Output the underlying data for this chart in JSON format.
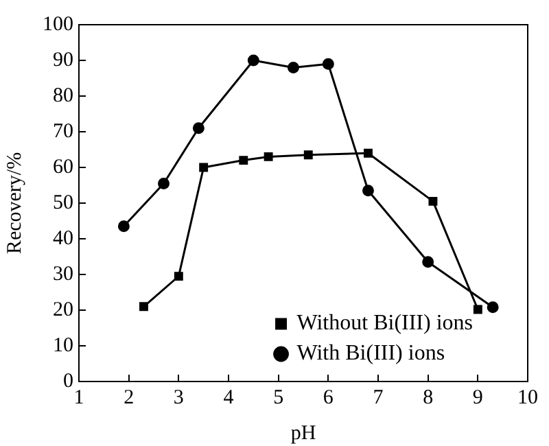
{
  "chart_data": {
    "type": "line",
    "xlabel": "pH",
    "ylabel": "Recovery/%",
    "xlim": [
      1,
      10
    ],
    "xticks": [
      1,
      2,
      3,
      4,
      5,
      6,
      7,
      8,
      9,
      10
    ],
    "ylim": [
      0,
      100
    ],
    "yticks": [
      0,
      10,
      20,
      30,
      40,
      50,
      60,
      70,
      80,
      90,
      100
    ],
    "grid": false,
    "legend": "bottom right",
    "line_style": "solid",
    "series": [
      {
        "name": "Without Bi(III) ions",
        "color": "#000000",
        "marker": "square",
        "x": [
          2.3,
          3.0,
          3.5,
          4.3,
          4.8,
          5.6,
          6.8,
          8.1,
          9.0
        ],
        "values": [
          21,
          29.5,
          60,
          62,
          63,
          63.5,
          64,
          50.5,
          20.2
        ]
      },
      {
        "name": "With Bi(III) ions",
        "color": "#000000",
        "marker": "circle",
        "x": [
          1.9,
          2.7,
          3.4,
          4.5,
          5.3,
          6.0,
          6.8,
          8.0,
          9.3
        ],
        "values": [
          43.5,
          55.5,
          71,
          90,
          88,
          89,
          53.5,
          33.5,
          20.8
        ]
      }
    ]
  }
}
